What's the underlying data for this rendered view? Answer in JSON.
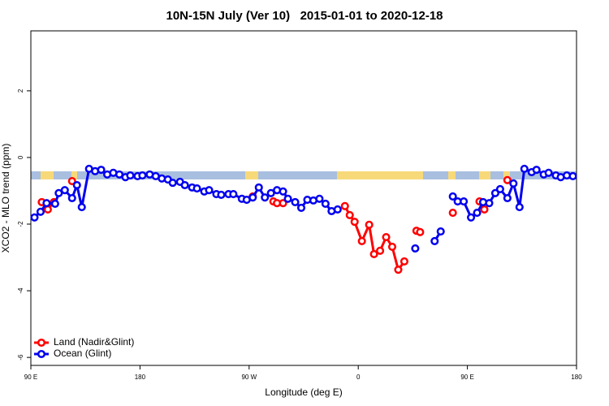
{
  "chart_data": {
    "type": "line",
    "title": "10N-15N July (Ver 10)   2015-01-01 to 2020-12-18",
    "x_label": "Longitude (deg E)",
    "y_label": "XCO2 - MLO trend (ppm)",
    "xlim": [
      90,
      540
    ],
    "xticks": [
      {
        "value": 90,
        "label": "90 E"
      },
      180,
      {
        "value": 270,
        "label": "90 W"
      },
      {
        "value": 360,
        "label": "0"
      },
      {
        "value": 450,
        "label": "90 E"
      },
      {
        "value": 540,
        "label": "180"
      }
    ],
    "ylim": [
      -6.24,
      3.8
    ],
    "yticks": [
      -6,
      -4,
      -2,
      0,
      2
    ],
    "grid": false,
    "legend_position": "bottom-left",
    "series": [
      {
        "name": "Land (Nadir&Glint)",
        "color": "#ff0000",
        "x": [
          99,
          104,
          109,
          115,
          124,
          200,
          273,
          280,
          290,
          293,
          298,
          330,
          349,
          353,
          357,
          363,
          369,
          373,
          378,
          383,
          388,
          393,
          398,
          402,
          408,
          411,
          420,
          438,
          450,
          460,
          464,
          475,
          483
        ],
        "values": [
          -1.34,
          -1.56,
          -1.34,
          null,
          -0.71,
          null,
          -1.17,
          null,
          -1.32,
          -1.37,
          -1.37,
          null,
          -1.46,
          -1.73,
          -1.93,
          -2.51,
          -2.02,
          -2.9,
          -2.8,
          -2.39,
          -2.68,
          -3.37,
          -3.12,
          null,
          -2.2,
          -2.24,
          null,
          -1.66,
          null,
          -1.32,
          -1.56,
          null,
          -0.68
        ]
      },
      {
        "name": "Ocean (Glint)",
        "color": "#0000ee",
        "x": [
          93,
          98,
          103,
          110,
          113,
          118,
          124,
          128,
          132,
          138,
          143,
          148,
          153,
          158,
          163,
          168,
          172,
          178,
          182,
          188,
          193,
          198,
          203,
          207,
          213,
          217,
          223,
          227,
          233,
          237,
          243,
          247,
          253,
          257,
          264,
          268,
          273,
          278,
          283,
          288,
          293,
          298,
          302,
          308,
          313,
          318,
          323,
          328,
          333,
          338,
          343,
          375,
          407,
          415,
          423,
          428,
          433,
          438,
          442,
          447,
          453,
          458,
          463,
          468,
          473,
          477,
          483,
          488,
          493,
          497,
          503,
          507,
          513,
          517,
          523,
          527,
          532,
          537
        ],
        "values": [
          -1.8,
          -1.63,
          -1.37,
          -1.39,
          -1.07,
          -0.98,
          -1.22,
          -0.83,
          -1.49,
          -0.34,
          -0.41,
          -0.37,
          -0.51,
          -0.46,
          -0.51,
          -0.59,
          -0.54,
          -0.56,
          -0.54,
          -0.51,
          -0.56,
          -0.63,
          -0.66,
          -0.76,
          -0.73,
          -0.83,
          -0.9,
          -0.93,
          -1.02,
          -0.98,
          -1.1,
          -1.12,
          -1.1,
          -1.1,
          -1.24,
          -1.27,
          -1.2,
          -0.9,
          -1.2,
          -1.07,
          -0.98,
          -1.02,
          -1.24,
          -1.34,
          -1.51,
          -1.27,
          -1.29,
          -1.24,
          -1.39,
          -1.61,
          -1.56,
          null,
          -2.73,
          null,
          -2.51,
          -2.22,
          null,
          -1.17,
          -1.32,
          -1.32,
          -1.8,
          -1.66,
          -1.34,
          -1.37,
          -1.07,
          -0.95,
          -1.22,
          -0.78,
          -1.49,
          -0.34,
          -0.44,
          -0.37,
          -0.51,
          -0.46,
          -0.54,
          -0.59,
          -0.54,
          -0.56
        ]
      }
    ]
  }
}
